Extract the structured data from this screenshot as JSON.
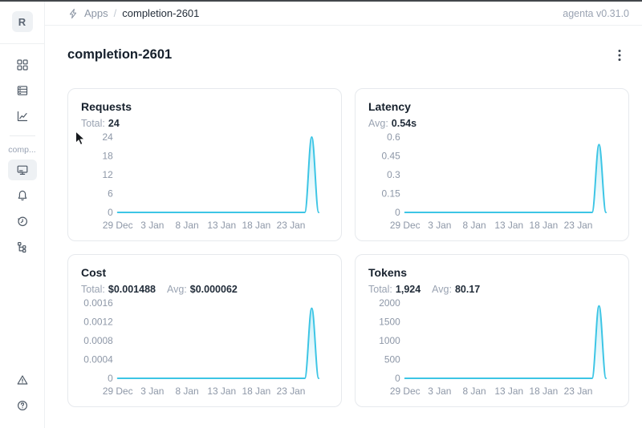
{
  "app": {
    "version_label": "agenta v0.31.0"
  },
  "breadcrumb": {
    "root": "Apps",
    "separator": "/",
    "current": "completion-2601"
  },
  "page": {
    "title": "completion-2601"
  },
  "sidebar": {
    "avatar_letter": "R",
    "section_label": "comp...",
    "nav_icons_top": [
      "apps-grid-icon",
      "test-sets-icon",
      "analytics-icon"
    ],
    "app_nav_icons": [
      "overview-monitor-icon",
      "alerts-bell-icon",
      "history-icon",
      "traces-tree-icon"
    ],
    "bottom_icons": [
      "warning-triangle-icon",
      "help-question-icon"
    ]
  },
  "theme": {
    "line_color": "#3cc5e5",
    "fill_top": "rgba(60,197,229,0.30)",
    "fill_bottom": "rgba(60,197,229,0)"
  },
  "chart_data": [
    {
      "type": "area",
      "title": "Requests",
      "stats": [
        {
          "label": "Total:",
          "value": "24"
        }
      ],
      "y_tick_labels": [
        "0",
        "6",
        "12",
        "18",
        "24"
      ],
      "y_max": 24,
      "x_tick_labels": [
        "29 Dec",
        "3 Jan",
        "8 Jan",
        "13 Jan",
        "18 Jan",
        "23 Jan"
      ],
      "x_tick_positions": [
        0,
        5,
        10,
        15,
        20,
        25
      ],
      "grid": false,
      "legend": false,
      "values": [
        0,
        0,
        0,
        0,
        0,
        0,
        0,
        0,
        0,
        0,
        0,
        0,
        0,
        0,
        0,
        0,
        0,
        0,
        0,
        0,
        0,
        0,
        0,
        0,
        0,
        0,
        0,
        0,
        24,
        0
      ]
    },
    {
      "type": "area",
      "title": "Latency",
      "stats": [
        {
          "label": "Avg:",
          "value": "0.54s"
        }
      ],
      "y_tick_labels": [
        "0",
        "0.15",
        "0.3",
        "0.45",
        "0.6"
      ],
      "y_max": 0.6,
      "x_tick_labels": [
        "29 Dec",
        "3 Jan",
        "8 Jan",
        "13 Jan",
        "18 Jan",
        "23 Jan"
      ],
      "x_tick_positions": [
        0,
        5,
        10,
        15,
        20,
        25
      ],
      "grid": false,
      "legend": false,
      "values": [
        0,
        0,
        0,
        0,
        0,
        0,
        0,
        0,
        0,
        0,
        0,
        0,
        0,
        0,
        0,
        0,
        0,
        0,
        0,
        0,
        0,
        0,
        0,
        0,
        0,
        0,
        0,
        0,
        0.54,
        0
      ]
    },
    {
      "type": "area",
      "title": "Cost",
      "stats": [
        {
          "label": "Total:",
          "value": "$0.001488"
        },
        {
          "label": "Avg:",
          "value": "$0.000062"
        }
      ],
      "y_tick_labels": [
        "0",
        "0.0004",
        "0.0008",
        "0.0012",
        "0.0016"
      ],
      "y_max": 0.0016,
      "x_tick_labels": [
        "29 Dec",
        "3 Jan",
        "8 Jan",
        "13 Jan",
        "18 Jan",
        "23 Jan"
      ],
      "x_tick_positions": [
        0,
        5,
        10,
        15,
        20,
        25
      ],
      "grid": false,
      "legend": false,
      "values": [
        0,
        0,
        0,
        0,
        0,
        0,
        0,
        0,
        0,
        0,
        0,
        0,
        0,
        0,
        0,
        0,
        0,
        0,
        0,
        0,
        0,
        0,
        0,
        0,
        0,
        0,
        0,
        0,
        0.001488,
        0
      ]
    },
    {
      "type": "area",
      "title": "Tokens",
      "stats": [
        {
          "label": "Total:",
          "value": "1,924"
        },
        {
          "label": "Avg:",
          "value": "80.17"
        }
      ],
      "y_tick_labels": [
        "0",
        "500",
        "1000",
        "1500",
        "2000"
      ],
      "y_max": 2000,
      "x_tick_labels": [
        "29 Dec",
        "3 Jan",
        "8 Jan",
        "13 Jan",
        "18 Jan",
        "23 Jan"
      ],
      "x_tick_positions": [
        0,
        5,
        10,
        15,
        20,
        25
      ],
      "grid": false,
      "legend": false,
      "values": [
        0,
        0,
        0,
        0,
        0,
        0,
        0,
        0,
        0,
        0,
        0,
        0,
        0,
        0,
        0,
        0,
        0,
        0,
        0,
        0,
        0,
        0,
        0,
        0,
        0,
        0,
        0,
        0,
        1924,
        0
      ]
    }
  ]
}
